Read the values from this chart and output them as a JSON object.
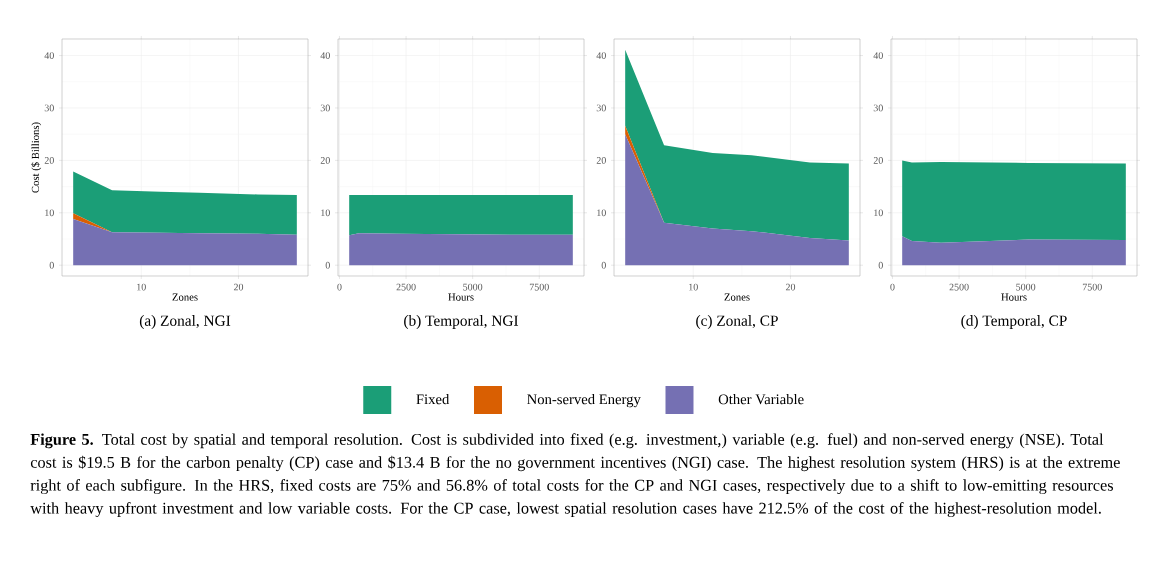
{
  "chart_data": [
    {
      "type": "area",
      "stacked": true,
      "xlabel": "Zones",
      "ylabel": "Cost ($ Billions)",
      "x": [
        3,
        7,
        12,
        16,
        22,
        26
      ],
      "xlim": [
        1.85,
        27.15
      ],
      "ylim": [
        -2.06,
        43.16
      ],
      "xticks": [
        10,
        20
      ],
      "yticks": [
        0,
        10,
        20,
        30,
        40
      ],
      "grid": true,
      "legend": "bottom",
      "series": [
        {
          "name": "Other Variable",
          "color": "#7570b3",
          "values": [
            8.8,
            6.3,
            6.2,
            6.1,
            6.0,
            5.8
          ]
        },
        {
          "name": "Non-served Energy",
          "color": "#d95f02",
          "values": [
            1.1,
            0,
            0,
            0,
            0,
            0
          ]
        },
        {
          "name": "Fixed",
          "color": "#1b9e77",
          "values": [
            8.0,
            8.0,
            7.8,
            7.7,
            7.5,
            7.6
          ]
        }
      ],
      "annotations": [
        "(a) Zonal, NGI",
        "**Figure 5.** Total cost by spatial and temporal resolution. Cost is subdivided into fixed (e.g. investment,) variable (e.g. fuel) and non-served energy (NSE). Total cost is $19.5 B for the carbon penalty (CP) case and $13.4 B for the no government incentives (NGI) case. The highest resolution system (HRS) is at the extreme right of each subfigure. In the HRS, fixed costs are 75% and 56.8% of total costs for the CP and NGI cases, respectively due to a shift to low-emitting resources with heavy upfront investment and low variable costs. For the CP case, lowest spatial resolution cases have 212.5% of the cost of the highest-resolution model."
      ]
    },
    {
      "type": "area",
      "stacked": true,
      "xlabel": "Hours",
      "x": [
        365,
        730,
        2190,
        4380,
        6570,
        8760
      ],
      "xlim": [
        -55,
        9180
      ],
      "ylim": [
        -2.06,
        43.16
      ],
      "xticks": [
        0,
        2500,
        5000,
        7500
      ],
      "yticks": [
        0,
        10,
        20,
        30,
        40
      ],
      "grid": true,
      "series": [
        {
          "color": "#7570b3",
          "values": [
            5.7,
            6.1,
            6.0,
            5.9,
            5.8,
            5.8
          ]
        },
        {
          "color": "#1b9e77",
          "values": [
            7.7,
            7.3,
            7.4,
            7.5,
            7.6,
            7.6
          ]
        }
      ],
      "annotations": [
        "(b) Temporal, NGI"
      ]
    },
    {
      "type": "area",
      "stacked": true,
      "xlabel": "Zones",
      "x": [
        3,
        7,
        12,
        16,
        22,
        26
      ],
      "xlim": [
        1.85,
        27.15
      ],
      "ylim": [
        -2.06,
        43.16
      ],
      "xticks": [
        10,
        20
      ],
      "yticks": [
        0,
        10,
        20,
        30,
        40
      ],
      "grid": true,
      "series": [
        {
          "color": "#7570b3",
          "values": [
            25.0,
            8.1,
            7.0,
            6.5,
            5.2,
            4.7
          ]
        },
        {
          "color": "#d95f02",
          "values": [
            1.6,
            0,
            0,
            0,
            0,
            0
          ]
        },
        {
          "color": "#1b9e77",
          "values": [
            14.5,
            14.8,
            14.4,
            14.5,
            14.4,
            14.7
          ]
        }
      ],
      "annotations": [
        "(c) Zonal, CP"
      ]
    },
    {
      "type": "area",
      "stacked": true,
      "xlabel": "Hours",
      "x": [
        365,
        730,
        1825,
        5110,
        8760
      ],
      "xlim": [
        -55,
        9180
      ],
      "ylim": [
        -2.06,
        43.16
      ],
      "xticks": [
        0,
        2500,
        5000,
        7500
      ],
      "yticks": [
        0,
        10,
        20,
        30,
        40
      ],
      "grid": true,
      "series": [
        {
          "color": "#7570b3",
          "values": [
            5.5,
            4.6,
            4.3,
            4.9,
            4.8
          ]
        },
        {
          "color": "#1b9e77",
          "values": [
            14.5,
            15.0,
            15.4,
            14.6,
            14.6
          ]
        }
      ],
      "annotations": [
        "(d) Temporal, CP"
      ]
    }
  ]
}
